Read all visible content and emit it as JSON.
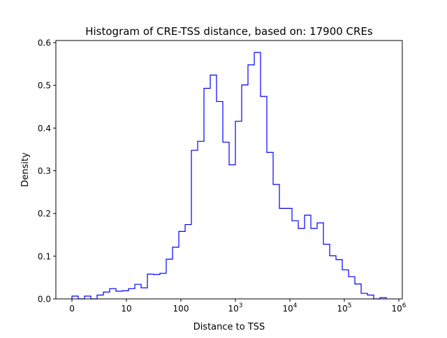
{
  "chart_data": {
    "type": "histogram",
    "title": "Histogram of CRE-TSS distance, based on: 17900 CREs",
    "xlabel": "Distance to TSS",
    "ylabel": "Density",
    "xscale": "symlog (equal spacing per decade, 0 mapped to position 0)",
    "xlim_decades": [
      -0.295,
      6.064
    ],
    "ylim": [
      0,
      0.605
    ],
    "x_ticks": [
      {
        "pos": 0,
        "base": "0",
        "exp": ""
      },
      {
        "pos": 1,
        "base": "10",
        "exp": ""
      },
      {
        "pos": 2,
        "base": "100",
        "exp": ""
      },
      {
        "pos": 3,
        "base": "10",
        "exp": "3"
      },
      {
        "pos": 4,
        "base": "10",
        "exp": "4"
      },
      {
        "pos": 5,
        "base": "10",
        "exp": "5"
      },
      {
        "pos": 6,
        "base": "10",
        "exp": "6"
      }
    ],
    "y_ticks": [
      "0.0",
      "0.1",
      "0.2",
      "0.3",
      "0.4",
      "0.5",
      "0.6"
    ],
    "y_tick_values": [
      0,
      0.1,
      0.2,
      0.3,
      0.4,
      0.5,
      0.6
    ],
    "bin_start_decades": 0,
    "bin_width_decades": 0.1154,
    "values": [
      0.0065,
      0,
      0.0065,
      0,
      0.009,
      0.016,
      0.024,
      0.018,
      0.019,
      0.024,
      0.034,
      0.026,
      0.058,
      0.057,
      0.06,
      0.093,
      0.121,
      0.158,
      0.174,
      0.348,
      0.369,
      0.493,
      0.524,
      0.462,
      0.367,
      0.314,
      0.416,
      0.501,
      0.548,
      0.577,
      0.474,
      0.343,
      0.268,
      0.212,
      0.212,
      0.183,
      0.165,
      0.196,
      0.165,
      0.178,
      0.128,
      0.101,
      0.092,
      0.068,
      0.052,
      0.035,
      0.013,
      0.009,
      0,
      0.003
    ],
    "histtype": "step",
    "color": "#0000ff",
    "grid": false,
    "legend": "none"
  }
}
